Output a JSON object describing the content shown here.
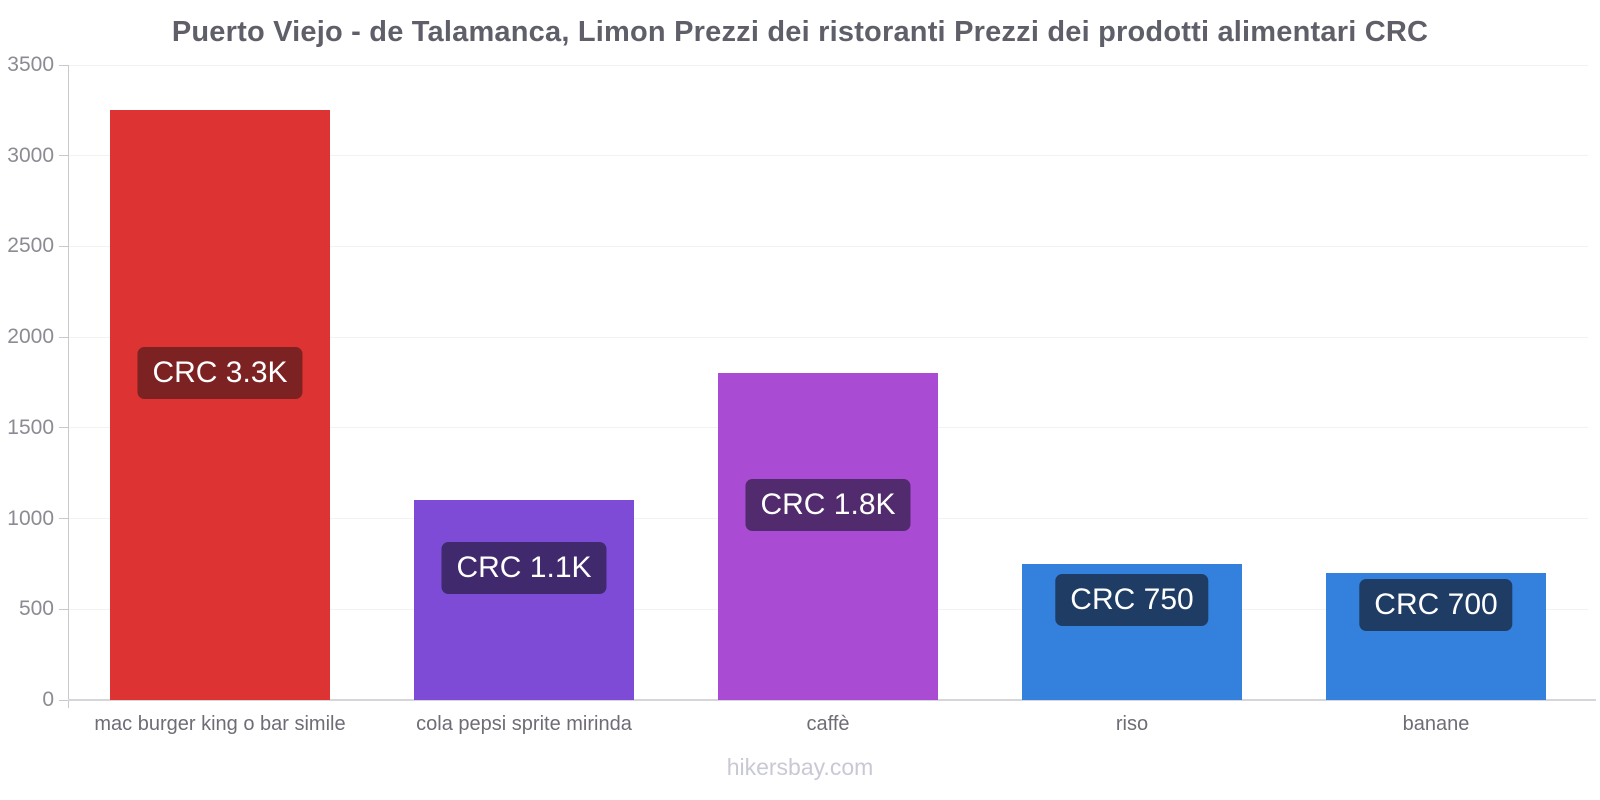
{
  "chart_data": {
    "type": "bar",
    "title": "Puerto Viejo - de Talamanca, Limon Prezzi dei ristoranti Prezzi dei prodotti alimentari CRC",
    "categories": [
      "mac burger king o bar simile",
      "cola pepsi sprite mirinda",
      "caffè",
      "riso",
      "banane"
    ],
    "values": [
      3250,
      1100,
      1800,
      750,
      700
    ],
    "bar_labels": [
      "CRC 3.3K",
      "CRC 1.1K",
      "CRC 1.8K",
      "CRC 750",
      "CRC 700"
    ],
    "bar_colors": [
      "#de3333",
      "#7e4bd7",
      "#a94bd3",
      "#3381dd",
      "#3381dd"
    ],
    "bar_label_bg_colors": [
      "#7c2222",
      "#402a6d",
      "#512b6e",
      "#1e3c64",
      "#1e3c64"
    ],
    "y_ticks": [
      0,
      500,
      1000,
      1500,
      2000,
      2500,
      3000,
      3500
    ],
    "ylim": [
      0,
      3500
    ],
    "xlabel": "",
    "ylabel": "",
    "grid": true,
    "legend": false,
    "currency": "CRC"
  },
  "footer": {
    "watermark": "hikersbay.com"
  }
}
